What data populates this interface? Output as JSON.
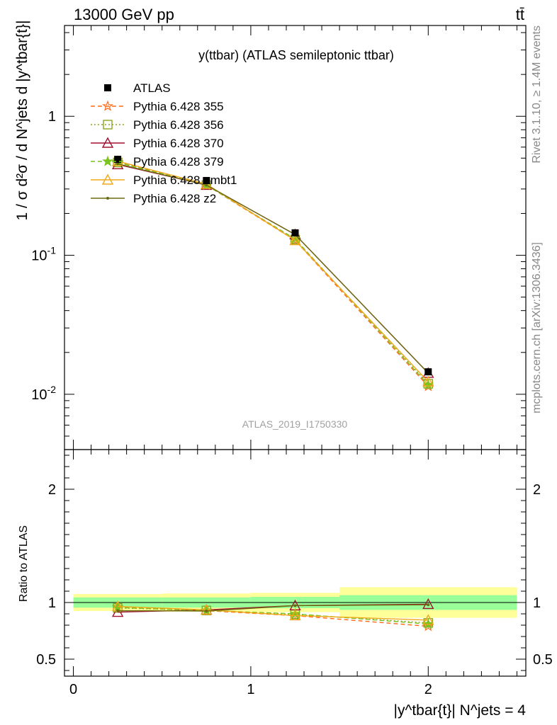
{
  "header": {
    "left": "13000 GeV pp",
    "right": "tt̄"
  },
  "side_labels": {
    "rivet": "Rivet 3.1.10, ≥ 1.4M events",
    "mcplots": "mcplots.cern.ch [arXiv:1306.3436]"
  },
  "watermark": "ATLAS_2019_I1750330",
  "chart_data": [
    {
      "type": "line",
      "panel": "main",
      "title": "y(ttbar) (ATLAS semileptonic ttbar)",
      "ylabel": "1 / σ d²σ / d N^jets d |y^tbar{t}|",
      "yscale": "log",
      "ylim": [
        0.004,
        4.5
      ],
      "xlim": [
        -0.05,
        2.55
      ],
      "x": [
        0.25,
        0.75,
        1.25,
        2.0
      ],
      "y_tick_labels": [
        "10^-2",
        "10^-1",
        "1"
      ],
      "data": {
        "name": "ATLAS",
        "x": [
          0.25,
          0.75,
          1.25,
          2.0
        ],
        "y": [
          0.49,
          0.345,
          0.145,
          0.0145
        ]
      },
      "series": [
        {
          "name": "Pythia 6.428 355",
          "color": "#ff6a1a",
          "marker": "star-open",
          "style": "dashed",
          "values": [
            0.47,
            0.32,
            0.128,
            0.0114
          ]
        },
        {
          "name": "Pythia 6.428 356",
          "color": "#8aa61e",
          "marker": "square-open",
          "style": "dotted",
          "values": [
            0.465,
            0.32,
            0.13,
            0.0119
          ]
        },
        {
          "name": "Pythia 6.428 370",
          "color": "#a01030",
          "marker": "triangle-open",
          "style": "solid",
          "values": [
            0.45,
            0.32,
            0.141,
            0.0142
          ]
        },
        {
          "name": "Pythia 6.428 379",
          "color": "#7ac31e",
          "marker": "star-filled",
          "style": "dashed",
          "values": [
            0.465,
            0.32,
            0.131,
            0.0117
          ]
        },
        {
          "name": "Pythia 6.428 ambt1",
          "color": "#f0a818",
          "marker": "triangle-open",
          "style": "solid",
          "values": [
            0.475,
            0.325,
            0.128,
            0.0123
          ]
        },
        {
          "name": "Pythia 6.428 z2",
          "color": "#6b6b10",
          "marker": "dot",
          "style": "solid",
          "values": [
            0.455,
            0.32,
            0.141,
            0.0142
          ]
        }
      ]
    },
    {
      "type": "line",
      "panel": "ratio",
      "ylabel": "Ratio to ATLAS",
      "xlabel": "|y^tbar{t}| N^jets = 4",
      "ylim": [
        0.35,
        2.35
      ],
      "xlim": [
        -0.05,
        2.55
      ],
      "x_tick_labels": [
        "0",
        "1",
        "2"
      ],
      "y_tick_labels": [
        "0.5",
        "1",
        "2"
      ],
      "bands": [
        {
          "x0": 0.0,
          "x1": 0.5,
          "stat": [
            0.955,
            1.045
          ],
          "total": [
            0.925,
            1.075
          ]
        },
        {
          "x0": 0.5,
          "x1": 1.0,
          "stat": [
            0.955,
            1.045
          ],
          "total": [
            0.92,
            1.08
          ]
        },
        {
          "x0": 1.0,
          "x1": 1.5,
          "stat": [
            0.95,
            1.05
          ],
          "total": [
            0.915,
            1.085
          ]
        },
        {
          "x0": 1.5,
          "x1": 2.5,
          "stat": [
            0.935,
            1.065
          ],
          "total": [
            0.865,
            1.135
          ]
        }
      ],
      "x": [
        0.25,
        0.75,
        1.25,
        2.0
      ],
      "series": [
        {
          "name": "Pythia 6.428 355",
          "values": [
            0.958,
            0.928,
            0.884,
            0.79
          ]
        },
        {
          "name": "Pythia 6.428 356",
          "values": [
            0.952,
            0.93,
            0.896,
            0.82
          ]
        },
        {
          "name": "Pythia 6.428 370",
          "values": [
            0.915,
            0.935,
            0.973,
            0.985
          ]
        },
        {
          "name": "Pythia 6.428 379",
          "values": [
            0.955,
            0.93,
            0.9,
            0.81
          ]
        },
        {
          "name": "Pythia 6.428 ambt1",
          "values": [
            0.965,
            0.935,
            0.885,
            0.845
          ]
        },
        {
          "name": "Pythia 6.428 z2",
          "values": [
            0.928,
            0.925,
            0.972,
            0.98
          ]
        }
      ]
    }
  ]
}
